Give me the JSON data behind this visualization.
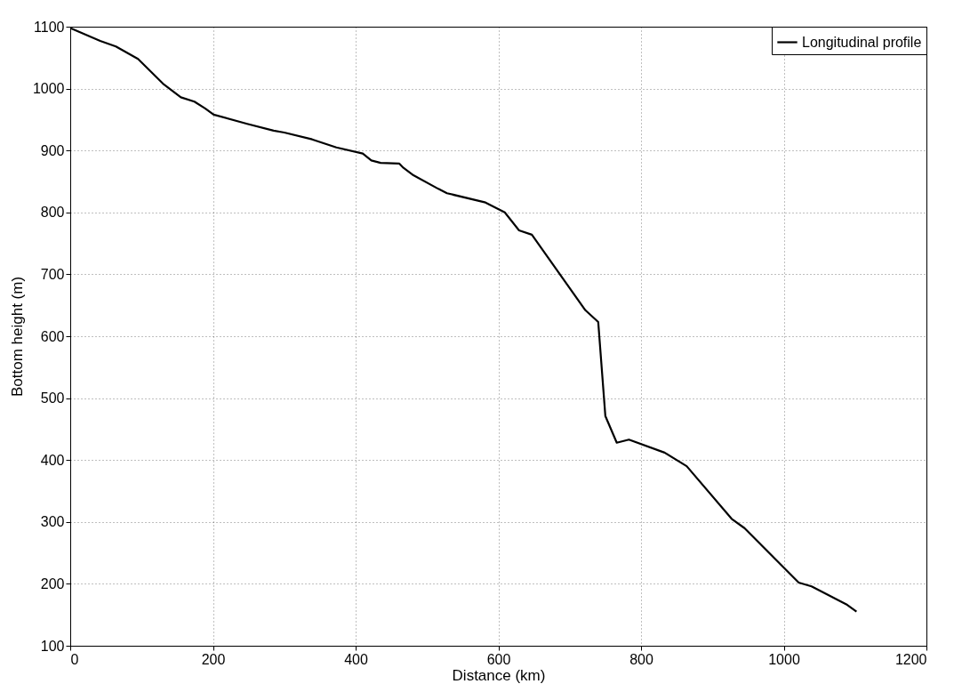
{
  "chart_data": {
    "type": "line",
    "xlabel": "Distance (km)",
    "ylabel": "Bottom height (m)",
    "xlim": [
      0,
      1200
    ],
    "xticks": [
      0,
      200,
      400,
      600,
      800,
      1000,
      1200
    ],
    "ylim": [
      100,
      1100
    ],
    "yticks": [
      100,
      200,
      300,
      400,
      500,
      600,
      700,
      800,
      900,
      1000,
      1100
    ],
    "grid": true,
    "legend": "top right",
    "line_style": "solid",
    "series": [
      {
        "name": "Longitudinal profile",
        "color": "#000000",
        "x": [
          0,
          42,
          64,
          95,
          130,
          155,
          174,
          189,
          201,
          248,
          285,
          300,
          339,
          373,
          410,
          422,
          435,
          461,
          467,
          481,
          516,
          528,
          582,
          609,
          629,
          647,
          722,
          740,
          750,
          766,
          783,
          833,
          864,
          927,
          945,
          1021,
          1039,
          1089,
          1102
        ],
        "values": [
          1098,
          1077,
          1068,
          1048,
          1008,
          986,
          979,
          968,
          958,
          943,
          932,
          929,
          918,
          905,
          895,
          884,
          880,
          879,
          872,
          860,
          838,
          831,
          816,
          800,
          771,
          764,
          642,
          623,
          471,
          428,
          433,
          412,
          390,
          305,
          290,
          202,
          196,
          166,
          155
        ]
      }
    ]
  }
}
